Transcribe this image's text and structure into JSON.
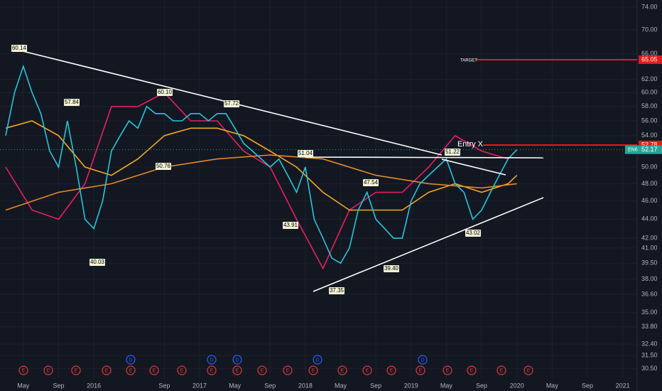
{
  "chart_data": {
    "type": "line",
    "log_scale": true,
    "grid": true,
    "background": "#131722",
    "xlim": [
      "2015-03",
      "2021-02"
    ],
    "xticks": [
      {
        "value": "2015-05",
        "label": "May"
      },
      {
        "value": "2015-09",
        "label": "Sep"
      },
      {
        "value": "2016-01",
        "label": "2016"
      },
      {
        "value": "2016-09",
        "label": "Sep"
      },
      {
        "value": "2017-01",
        "label": "2017"
      },
      {
        "value": "2017-05",
        "label": "May"
      },
      {
        "value": "2017-09",
        "label": "Sep"
      },
      {
        "value": "2018-01",
        "label": "2018"
      },
      {
        "value": "2018-05",
        "label": "May"
      },
      {
        "value": "2018-09",
        "label": "Sep"
      },
      {
        "value": "2019-01",
        "label": "2019"
      },
      {
        "value": "2019-05",
        "label": "May"
      },
      {
        "value": "2019-09",
        "label": "Sep"
      },
      {
        "value": "2020-01",
        "label": "2020"
      },
      {
        "value": "2020-05",
        "label": "May"
      },
      {
        "value": "2020-09",
        "label": "Sep"
      },
      {
        "value": "2021-01",
        "label": "2021"
      }
    ],
    "ylim": [
      29.8,
      75.3
    ],
    "yticks": [
      {
        "value": 74,
        "label": "74.00"
      },
      {
        "value": 70,
        "label": "70.00"
      },
      {
        "value": 66,
        "label": "66.00"
      },
      {
        "value": 62,
        "label": "62.00"
      },
      {
        "value": 60,
        "label": "60.00"
      },
      {
        "value": 58,
        "label": "58.00"
      },
      {
        "value": 56,
        "label": "56.00"
      },
      {
        "value": 54,
        "label": "54.00"
      },
      {
        "value": 50,
        "label": "50.00"
      },
      {
        "value": 48,
        "label": "48.00"
      },
      {
        "value": 46,
        "label": "46.00"
      },
      {
        "value": 44,
        "label": "44.00"
      },
      {
        "value": 42,
        "label": "42.00"
      },
      {
        "value": 41,
        "label": "41.00"
      },
      {
        "value": 39.5,
        "label": "39.50"
      },
      {
        "value": 38,
        "label": "38.00"
      },
      {
        "value": 36.6,
        "label": "36.60"
      },
      {
        "value": 35,
        "label": "35.00"
      },
      {
        "value": 33.8,
        "label": "33.80"
      },
      {
        "value": 32.4,
        "label": "32.40"
      },
      {
        "value": 31.5,
        "label": "31.50"
      },
      {
        "value": 30.5,
        "label": "30.50"
      }
    ],
    "series": [
      {
        "color": "#e91e63",
        "x": [
          "2015-03",
          "2015-06",
          "2015-09",
          "2015-12",
          "2016-03",
          "2016-06",
          "2016-09",
          "2016-12",
          "2017-03",
          "2017-06",
          "2017-09",
          "2017-12",
          "2018-03",
          "2018-06",
          "2018-09",
          "2018-12",
          "2019-03",
          "2019-06",
          "2019-09",
          "2019-12"
        ],
        "values": [
          50,
          45,
          44,
          48,
          58,
          58,
          60,
          56,
          56,
          52,
          50,
          44,
          39,
          45,
          47,
          47,
          50,
          54,
          52,
          51
        ]
      },
      {
        "color": "#f5a623",
        "x": [
          "2015-03",
          "2015-06",
          "2015-09",
          "2015-12",
          "2016-03",
          "2016-06",
          "2016-09",
          "2016-12",
          "2017-03",
          "2017-06",
          "2017-09",
          "2017-12",
          "2018-03",
          "2018-06",
          "2018-09",
          "2018-12",
          "2019-03",
          "2019-06",
          "2019-09",
          "2019-12",
          "2020-01"
        ],
        "values": [
          55,
          56,
          54,
          50,
          49,
          51,
          54,
          55,
          55,
          54,
          52,
          50,
          47,
          45,
          45,
          45,
          47,
          48,
          47,
          48,
          49
        ]
      },
      {
        "color": "#e08a2a",
        "x": [
          "2015-03",
          "2015-09",
          "2016-03",
          "2016-09",
          "2017-03",
          "2017-09",
          "2018-03",
          "2018-09",
          "2019-03",
          "2019-09",
          "2020-01"
        ],
        "values": [
          45,
          47,
          48,
          50,
          51,
          51.5,
          51,
          49,
          48,
          47.5,
          48
        ]
      },
      {
        "color": "#26c6da",
        "x": [
          "2015-03",
          "2015-04",
          "2015-05",
          "2015-06",
          "2015-07",
          "2015-08",
          "2015-09",
          "2015-10",
          "2015-11",
          "2015-12",
          "2016-01",
          "2016-02",
          "2016-03",
          "2016-04",
          "2016-05",
          "2016-06",
          "2016-07",
          "2016-08",
          "2016-09",
          "2016-10",
          "2016-11",
          "2016-12",
          "2017-01",
          "2017-02",
          "2017-03",
          "2017-04",
          "2017-05",
          "2017-06",
          "2017-07",
          "2017-08",
          "2017-09",
          "2017-10",
          "2017-11",
          "2017-12",
          "2018-01",
          "2018-02",
          "2018-03",
          "2018-04",
          "2018-05",
          "2018-06",
          "2018-07",
          "2018-08",
          "2018-09",
          "2018-10",
          "2018-11",
          "2018-12",
          "2019-01",
          "2019-02",
          "2019-03",
          "2019-04",
          "2019-05",
          "2019-06",
          "2019-07",
          "2019-08",
          "2019-09",
          "2019-10",
          "2019-11",
          "2019-12",
          "2020-01"
        ],
        "values": [
          54,
          60,
          64,
          60,
          57,
          52,
          50,
          56,
          50,
          44,
          43,
          46,
          52,
          54,
          56,
          55,
          58,
          57,
          57,
          56,
          56,
          57,
          57,
          56,
          57,
          57,
          55,
          53,
          52,
          51,
          50,
          51,
          49,
          47,
          50,
          44,
          42,
          40,
          39.5,
          41,
          45,
          47,
          44,
          43,
          42,
          42,
          46,
          48,
          49,
          50,
          51,
          48,
          47,
          44,
          45,
          47,
          49,
          51,
          52.17
        ]
      }
    ],
    "annotations": [
      {
        "value": 60.14,
        "label": "60.14"
      },
      {
        "value": 57.84,
        "label": "57.84"
      },
      {
        "value": 60.1,
        "label": "60.10"
      },
      {
        "value": 57.72,
        "label": "57.72"
      },
      {
        "value": 50.76,
        "label": "50.76"
      },
      {
        "value": 40.03,
        "label": "40.03"
      },
      {
        "value": 51.04,
        "label": "51.04"
      },
      {
        "value": 47.54,
        "label": "47.54"
      },
      {
        "value": 43.91,
        "label": "43.91"
      },
      {
        "value": 37.35,
        "label": "37.35"
      },
      {
        "value": 39.4,
        "label": "39.40"
      },
      {
        "value": 51.22,
        "label": "51.22"
      },
      {
        "value": 43.02,
        "label": "43.02"
      }
    ],
    "target": {
      "text": "TARGET",
      "value": 65.05,
      "label": "65.05",
      "color": "#e31b1b"
    },
    "entry": {
      "text": "Entry X",
      "value": 52.78,
      "label": "52.78",
      "color": "#e31b1b"
    },
    "last": {
      "symbol": "EN6",
      "value": 52.17,
      "label": "52.17",
      "color": "#26a69a"
    },
    "earnings": [
      "E",
      "E",
      "E",
      "E",
      "E",
      "E",
      "E",
      "E",
      "E",
      "E",
      "E",
      "E",
      "E",
      "E",
      "E",
      "E",
      "E",
      "E",
      "E",
      "E"
    ],
    "dividends": [
      "D",
      "D",
      "D",
      "D",
      "D"
    ]
  }
}
